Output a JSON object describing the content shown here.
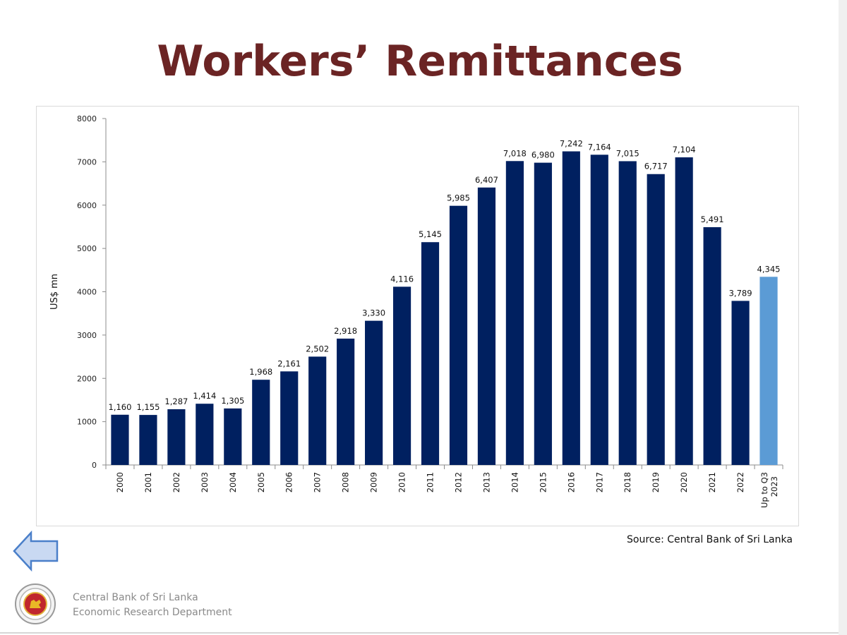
{
  "slide": {
    "title": "Workers’ Remittances",
    "source": "Source: Central Bank of Sri Lanka",
    "org_line1": "Central Bank of Sri Lanka",
    "org_line2": "Economic Research Department"
  },
  "chart_data": {
    "type": "bar",
    "ylabel": "US$ mn",
    "ylim": [
      0,
      8000
    ],
    "yticks": [
      "0",
      "1000",
      "2000",
      "3000",
      "4000",
      "5000",
      "6000",
      "7000",
      "8000"
    ],
    "categories": [
      "2000",
      "2001",
      "2002",
      "2003",
      "2004",
      "2005",
      "2006",
      "2007",
      "2008",
      "2009",
      "2010",
      "2011",
      "2012",
      "2013",
      "2014",
      "2015",
      "2016",
      "2017",
      "2018",
      "2019",
      "2020",
      "2021",
      "2022",
      "Up to Q3 2023"
    ],
    "values": [
      1160,
      1155,
      1287,
      1414,
      1305,
      1968,
      2161,
      2502,
      2918,
      3330,
      4116,
      5145,
      5985,
      6407,
      7018,
      6980,
      7242,
      7164,
      7015,
      6717,
      7104,
      5491,
      3789,
      4345
    ],
    "value_labels": [
      "1,160",
      "1,155",
      "1,287",
      "1,414",
      "1,305",
      "1,968",
      "2,161",
      "2,502",
      "2,918",
      "3,330",
      "4,116",
      "5,145",
      "5,985",
      "6,407",
      "7,018",
      "6,980",
      "7,242",
      "7,164",
      "7,015",
      "6,717",
      "7,104",
      "5,491",
      "3,789",
      "4,345"
    ],
    "colors": {
      "bar": "#002060",
      "highlight": "#5b9bd5"
    },
    "highlight_index": 23,
    "grid": false,
    "legend": "none"
  }
}
